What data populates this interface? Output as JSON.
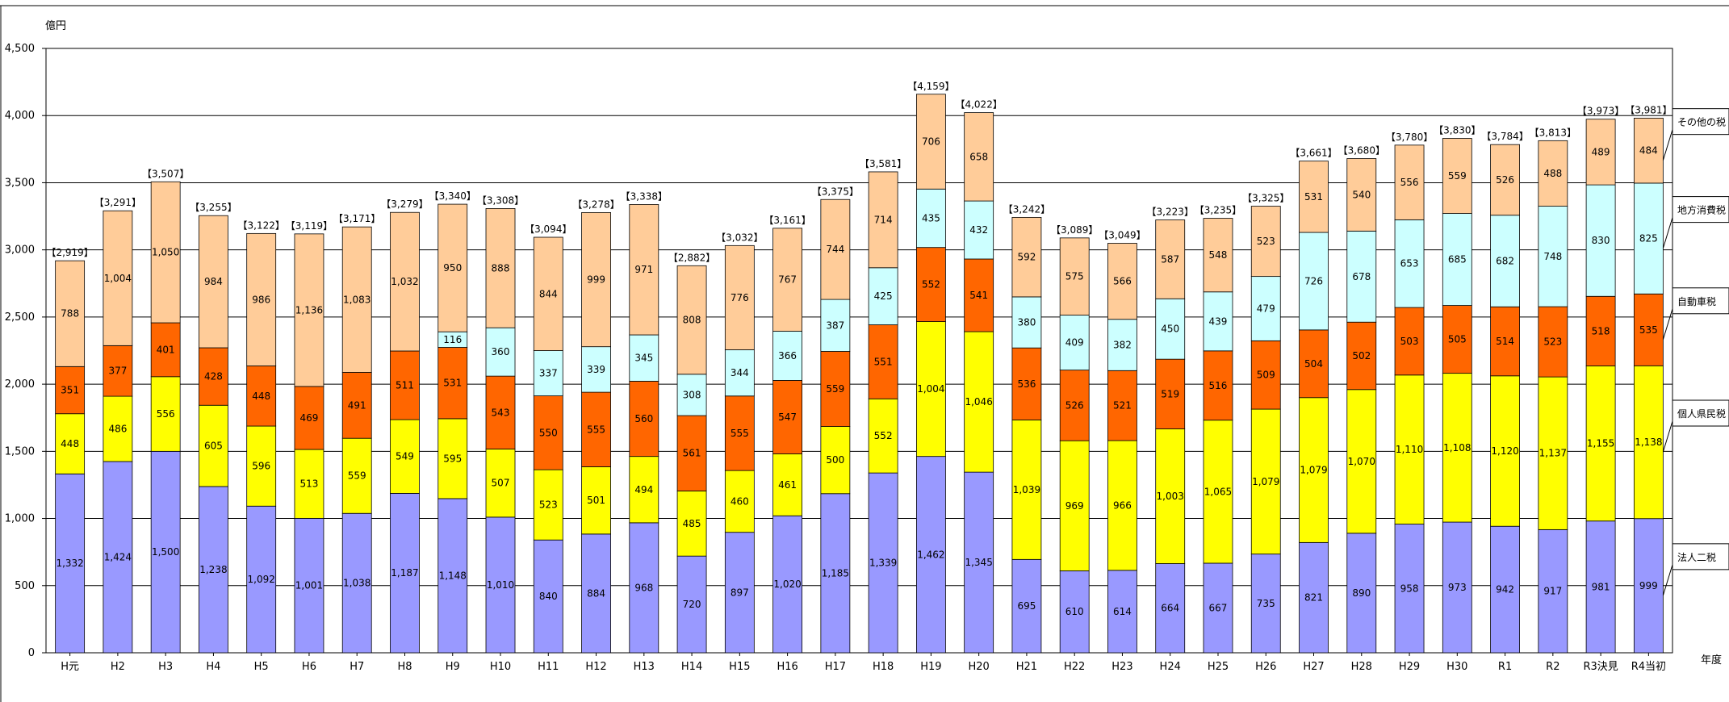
{
  "chart_data": {
    "type": "bar",
    "stacked": true,
    "ylabel": "億円",
    "xlabel": "年度",
    "ylim": [
      0,
      4500
    ],
    "yticks": [
      0,
      500,
      1000,
      1500,
      2000,
      2500,
      3000,
      3500,
      4000,
      4500
    ],
    "ytick_labels": [
      "0",
      "500",
      "1,000",
      "1,500",
      "2,000",
      "2,500",
      "3,000",
      "3,500",
      "4,000",
      "4,500"
    ],
    "grid": true,
    "legend_placement": "right",
    "categories": [
      "H元",
      "H2",
      "H3",
      "H4",
      "H5",
      "H6",
      "H7",
      "H8",
      "H9",
      "H10",
      "H11",
      "H12",
      "H13",
      "H14",
      "H15",
      "H16",
      "H17",
      "H18",
      "H19",
      "H20",
      "H21",
      "H22",
      "H23",
      "H24",
      "H25",
      "H26",
      "H27",
      "H28",
      "H29",
      "H30",
      "R1",
      "R2",
      "R3決見",
      "R4当初"
    ],
    "totals": [
      2919,
      3291,
      3507,
      3255,
      3122,
      3119,
      3171,
      3279,
      3340,
      3308,
      3094,
      3278,
      3338,
      2882,
      3032,
      3161,
      3375,
      3581,
      4159,
      4022,
      3242,
      3089,
      3049,
      3223,
      3235,
      3325,
      3661,
      3680,
      3780,
      3830,
      3784,
      3813,
      3973,
      3981
    ],
    "series": [
      {
        "name": "法人二税",
        "color": "#9999ff",
        "values": [
          1332,
          1424,
          1500,
          1238,
          1092,
          1001,
          1038,
          1187,
          1148,
          1010,
          840,
          884,
          968,
          720,
          897,
          1020,
          1185,
          1339,
          1462,
          1345,
          695,
          610,
          614,
          664,
          667,
          735,
          821,
          890,
          958,
          973,
          942,
          917,
          981,
          999
        ]
      },
      {
        "name": "個人県民税",
        "color": "#ffff00",
        "values": [
          448,
          486,
          556,
          605,
          596,
          513,
          559,
          549,
          595,
          507,
          523,
          501,
          494,
          485,
          460,
          461,
          500,
          552,
          1004,
          1046,
          1039,
          969,
          966,
          1003,
          1065,
          1079,
          1079,
          1070,
          1110,
          1108,
          1120,
          1137,
          1155,
          1138
        ]
      },
      {
        "name": "自動車税",
        "color": "#ff6600",
        "values": [
          351,
          377,
          401,
          428,
          448,
          469,
          491,
          511,
          531,
          543,
          550,
          555,
          560,
          561,
          555,
          547,
          559,
          551,
          552,
          541,
          536,
          526,
          521,
          519,
          516,
          509,
          504,
          502,
          503,
          505,
          514,
          523,
          518,
          535
        ]
      },
      {
        "name": "地方消費税",
        "color": "#ccffff",
        "values": [
          null,
          null,
          null,
          null,
          null,
          null,
          null,
          null,
          116,
          360,
          337,
          339,
          345,
          308,
          344,
          366,
          387,
          425,
          435,
          432,
          380,
          409,
          382,
          450,
          439,
          479,
          726,
          678,
          653,
          685,
          682,
          748,
          830,
          825
        ]
      },
      {
        "name": "その他の税",
        "color": "#ffcc99",
        "values": [
          788,
          1004,
          1050,
          984,
          986,
          1136,
          1083,
          1032,
          950,
          888,
          844,
          999,
          971,
          808,
          776,
          767,
          744,
          714,
          706,
          658,
          592,
          575,
          566,
          587,
          548,
          523,
          531,
          540,
          556,
          559,
          526,
          488,
          489,
          484
        ]
      }
    ]
  }
}
